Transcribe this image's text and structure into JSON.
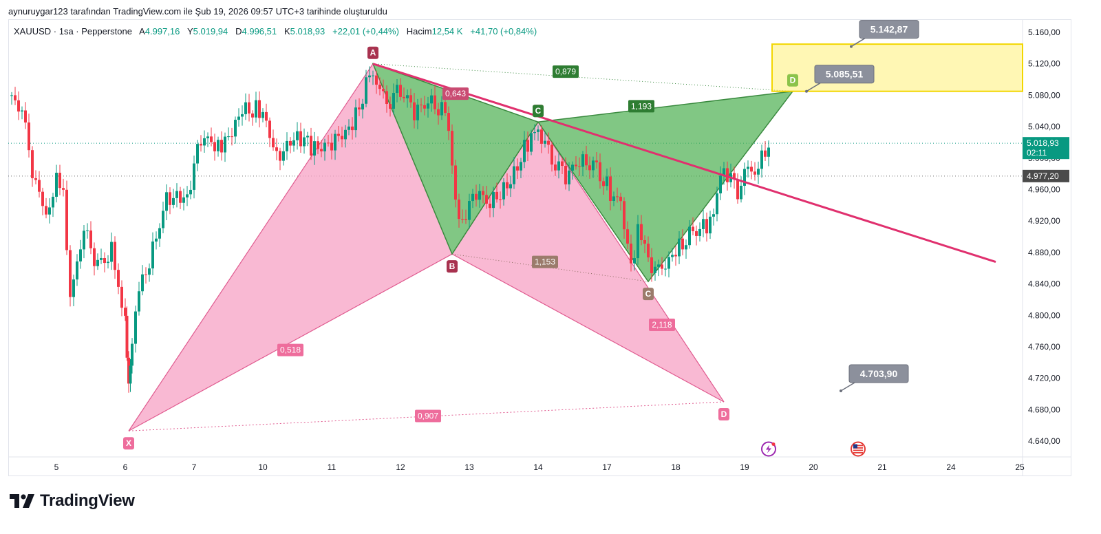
{
  "header": {
    "title": "aynuruygar123 tarafından TradingView.com ile Şub 19, 2026 09:57 UTC+3 tarihinde oluşturuldu"
  },
  "legend": {
    "symbol": "XAUUSD · 1sa · Pepperstone",
    "open_label": "A",
    "open": "4.997,16",
    "high_label": "Y",
    "high": "5.019,94",
    "low_label": "D",
    "low": "4.996,51",
    "close_label": "K",
    "close": "5.018,93",
    "change": "+22,01 (+0,44%)",
    "volume_label": "Hacim",
    "volume": "12,54 K",
    "volume_change": "+41,70 (+0,84%)"
  },
  "logo": {
    "text": "TradingView",
    "icon": "tradingview-logo-icon"
  },
  "colors": {
    "up": "#089981",
    "down": "#f23645",
    "pink": "#f7a1c4",
    "pink_line": "#e05a8f",
    "green": "#4caf50",
    "green_line": "#3a8a3f",
    "trend": "#e0306e",
    "zone": "#fff176"
  },
  "chart_data": {
    "type": "candlestick",
    "title": "",
    "xlabel": "",
    "ylabel": "",
    "ylim": [
      4610,
      5170
    ],
    "y_ticks": [
      {
        "v": 5160,
        "label": "5.160,00"
      },
      {
        "v": 5120,
        "label": "5.120,00"
      },
      {
        "v": 5080,
        "label": "5.080,00"
      },
      {
        "v": 5040,
        "label": "5.040,00"
      },
      {
        "v": 5000,
        "label": "5.000,00"
      },
      {
        "v": 4960,
        "label": "4.960,00"
      },
      {
        "v": 4920,
        "label": "4.920,00"
      },
      {
        "v": 4880,
        "label": "4.880,00"
      },
      {
        "v": 4840,
        "label": "4.840,00"
      },
      {
        "v": 4800,
        "label": "4.800,00"
      },
      {
        "v": 4760,
        "label": "4.760,00"
      },
      {
        "v": 4720,
        "label": "4.720,00"
      },
      {
        "v": 4680,
        "label": "4.680,00"
      },
      {
        "v": 4640,
        "label": "4.640,00"
      }
    ],
    "x_ticks": [
      {
        "t": 5,
        "label": "5"
      },
      {
        "t": 6,
        "label": "6"
      },
      {
        "t": 7,
        "label": "7"
      },
      {
        "t": 8,
        "label": "10"
      },
      {
        "t": 9,
        "label": "11"
      },
      {
        "t": 10,
        "label": "12"
      },
      {
        "t": 11,
        "label": "13"
      },
      {
        "t": 12,
        "label": "14"
      },
      {
        "t": 13,
        "label": "17"
      },
      {
        "t": 14,
        "label": "18"
      },
      {
        "t": 15,
        "label": "19"
      },
      {
        "t": 16,
        "label": "20"
      },
      {
        "t": 17,
        "label": "21"
      },
      {
        "t": 18,
        "label": "24"
      },
      {
        "t": 19,
        "label": "25"
      }
    ],
    "price_tags": [
      {
        "v": 5018.93,
        "label": "5.018,93",
        "sub": "02:11",
        "color": "#089981"
      },
      {
        "v": 4977.2,
        "label": "4.977,20",
        "color": "#4a4a4a"
      }
    ],
    "close_path": [
      [
        4.3,
        5080
      ],
      [
        4.5,
        5060
      ],
      [
        4.7,
        4960
      ],
      [
        4.9,
        4925
      ],
      [
        5.0,
        4985
      ],
      [
        5.1,
        4960
      ],
      [
        5.2,
        4820
      ],
      [
        5.4,
        4910
      ],
      [
        5.6,
        4860
      ],
      [
        5.8,
        4880
      ],
      [
        5.9,
        4840
      ],
      [
        6.0,
        4800
      ],
      [
        6.05,
        4710
      ],
      [
        6.1,
        4760
      ],
      [
        6.2,
        4830
      ],
      [
        6.4,
        4880
      ],
      [
        6.6,
        4950
      ],
      [
        6.9,
        4950
      ],
      [
        7.1,
        5030
      ],
      [
        7.4,
        5010
      ],
      [
        7.7,
        5060
      ],
      [
        8.0,
        5060
      ],
      [
        8.2,
        5000
      ],
      [
        8.5,
        5030
      ],
      [
        8.8,
        5010
      ],
      [
        9.0,
        5020
      ],
      [
        9.3,
        5040
      ],
      [
        9.5,
        5090
      ],
      [
        9.6,
        5110
      ],
      [
        9.8,
        5070
      ],
      [
        10.0,
        5090
      ],
      [
        10.2,
        5060
      ],
      [
        10.4,
        5070
      ],
      [
        10.6,
        5060
      ],
      [
        10.7,
        5040
      ],
      [
        10.8,
        4950
      ],
      [
        10.9,
        4920
      ],
      [
        11.1,
        4960
      ],
      [
        11.3,
        4940
      ],
      [
        11.6,
        4970
      ],
      [
        11.9,
        5030
      ],
      [
        12.0,
        5040
      ],
      [
        12.2,
        5000
      ],
      [
        12.4,
        4980
      ],
      [
        12.6,
        4995
      ],
      [
        12.8,
        4990
      ],
      [
        13.1,
        4950
      ],
      [
        13.2,
        4950
      ],
      [
        13.35,
        4860
      ],
      [
        13.45,
        4910
      ],
      [
        13.7,
        4850
      ],
      [
        14.0,
        4880
      ],
      [
        14.2,
        4900
      ],
      [
        14.5,
        4920
      ],
      [
        14.7,
        4990
      ],
      [
        14.9,
        4960
      ],
      [
        15.0,
        4980
      ],
      [
        15.2,
        4985
      ],
      [
        15.35,
        5019
      ]
    ],
    "harmonic_xabcd": {
      "points": [
        {
          "name": "X",
          "t": 6.05,
          "v": 4653
        },
        {
          "name": "A",
          "t": 9.6,
          "v": 5120
        },
        {
          "name": "B",
          "t": 10.75,
          "v": 4878
        },
        {
          "name": "C",
          "t": 12.0,
          "v": 5046
        },
        {
          "name": "D",
          "t": 14.7,
          "v": 4690
        }
      ],
      "ratios": [
        {
          "label": "0,518",
          "t": 8.4,
          "v": 4756
        },
        {
          "label": "0,907",
          "t": 10.4,
          "v": 4672
        },
        {
          "label": "2,118",
          "t": 13.8,
          "v": 4788
        },
        {
          "label": "0,643",
          "t": 10.8,
          "v": 5082
        }
      ]
    },
    "harmonic_abcd": {
      "points": [
        {
          "name": "A",
          "t": 9.6,
          "v": 5120
        },
        {
          "name": "B",
          "t": 10.75,
          "v": 4878
        },
        {
          "name": "C",
          "t": 12.0,
          "v": 5046
        },
        {
          "name": "C",
          "t": 13.6,
          "v": 4843
        },
        {
          "name": "D",
          "t": 15.7,
          "v": 5085
        }
      ],
      "ratios": [
        {
          "label": "0,879",
          "t": 12.4,
          "v": 5110
        },
        {
          "label": "1,153",
          "t": 12.1,
          "v": 4868
        },
        {
          "label": "1,193",
          "t": 13.5,
          "v": 5066
        }
      ]
    },
    "trendline": {
      "from": {
        "t": 9.6,
        "v": 5120
      },
      "to": {
        "t": 18.65,
        "v": 4868
      }
    },
    "target_zone": {
      "t1": 15.7,
      "t2": 19.1,
      "v_top": 5145,
      "v_bottom": 5085
    },
    "callouts": [
      {
        "label": "5.142,87",
        "t": 16.55,
        "v": 5142
      },
      {
        "label": "5.085,51",
        "t": 15.9,
        "v": 5085
      },
      {
        "label": "4.703,90",
        "t": 16.4,
        "v": 4704
      }
    ],
    "event_icons": [
      {
        "icon": "lightning-icon",
        "t": 15.35,
        "v": 4630
      },
      {
        "icon": "us-flag-icon",
        "t": 16.65,
        "v": 4630
      }
    ]
  }
}
